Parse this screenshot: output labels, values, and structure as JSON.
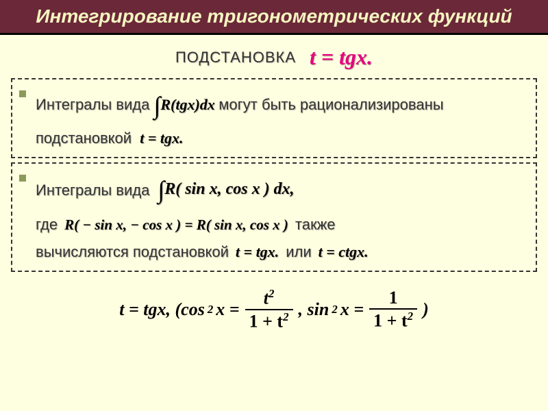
{
  "title": "Интегрирование тригонометрических функций",
  "subtitle_label": "ПОДСТАНОВКА",
  "subtitle_formula": "t = tgx.",
  "box1": {
    "pre": "Интегралы  вида",
    "integral": "∫",
    "integrand": "R(tgx)dx",
    "post": "могут быть рационализированы подстановкой",
    "subst": "t = tgx."
  },
  "box2": {
    "pre": "Интегралы  вида",
    "integral": "∫",
    "integrand": "R( sin x, cos x ) dx,",
    "where": "где",
    "condition": "R( − sin x, − cos x ) = R( sin x, cos x )",
    "also": "также",
    "computed": "вычисляются подстановкой",
    "subst1": "t = tgx.",
    "or": "или",
    "subst2": "t = ctgx."
  },
  "bottom": {
    "lead": "t = tgx, (cos",
    "sq": "2",
    "xeq": " x =",
    "num1": "t",
    "den1": "1 + t",
    "comma": ",    sin",
    "xeq2": " x =",
    "num2": "1",
    "den2": "1 + t",
    "close": ")"
  },
  "colors": {
    "bg": "#fefee0",
    "title_bg": "#6b2838",
    "title_fg": "#f5f5c0",
    "magenta": "#e6007e",
    "bullet": "#8a9a5b"
  }
}
